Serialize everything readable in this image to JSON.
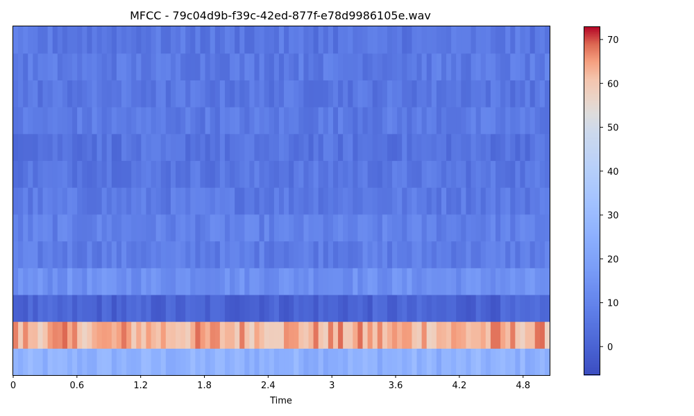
{
  "chart_data": {
    "type": "heatmap",
    "title": "MFCC - 79c04d9b-f39c-42ed-877f-e78d9986105e.wav",
    "xlabel": "Time",
    "ylabel": "",
    "xlim": [
      0,
      5.05
    ],
    "x_ticks": [
      0,
      0.6,
      1.2,
      1.8,
      2.4,
      3,
      3.6,
      4.2,
      4.8
    ],
    "x_tick_labels": [
      "0",
      "0.6",
      "1.2",
      "1.8",
      "2.4",
      "3",
      "3.6",
      "4.2",
      "4.8"
    ],
    "y_ticks_visible": false,
    "n_coefficients": 13,
    "n_frames": 109,
    "colormap": "coolwarm",
    "colorbar": {
      "vmin": -6.5,
      "vmax": 73,
      "ticks": [
        0,
        10,
        20,
        30,
        40,
        50,
        60,
        70
      ],
      "tick_labels": [
        "0",
        "10",
        "20",
        "30",
        "40",
        "50",
        "60",
        "70"
      ]
    },
    "coefficient_rows_bottom_to_top": [
      {
        "coefficient": 0,
        "mean": 26
      },
      {
        "coefficient": 1,
        "mean": 63
      },
      {
        "coefficient": 2,
        "mean": 0
      },
      {
        "coefficient": 3,
        "mean": 14
      },
      {
        "coefficient": 4,
        "mean": 8
      },
      {
        "coefficient": 5,
        "mean": 9
      },
      {
        "coefficient": 6,
        "mean": 7
      },
      {
        "coefficient": 7,
        "mean": 6
      },
      {
        "coefficient": 8,
        "mean": 5
      },
      {
        "coefficient": 9,
        "mean": 7
      },
      {
        "coefficient": 10,
        "mean": 6
      },
      {
        "coefficient": 11,
        "mean": 7
      },
      {
        "coefficient": 12,
        "mean": 6
      }
    ]
  }
}
